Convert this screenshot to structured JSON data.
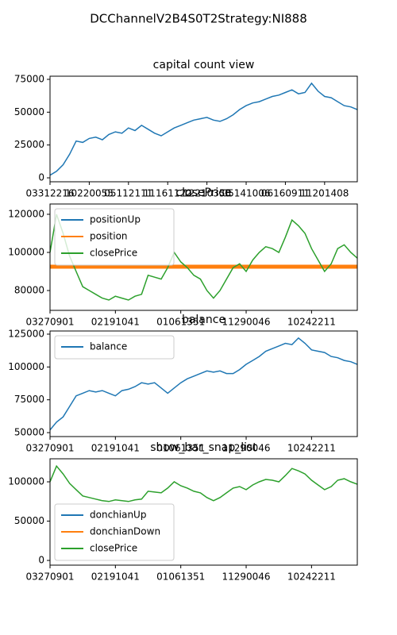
{
  "title": "DCChannelV2B4S0T2Strategy:NI888",
  "chart_data": [
    {
      "type": "line",
      "title": "capital count view",
      "x": [
        0,
        1,
        2,
        3,
        4,
        5,
        6,
        7,
        8,
        9,
        10,
        11,
        12,
        13,
        14,
        15,
        16,
        17,
        18,
        19,
        20,
        21,
        22,
        23,
        24,
        25,
        26,
        27,
        28,
        29,
        30,
        31,
        32,
        33,
        34,
        35,
        36,
        37,
        38,
        39,
        40,
        41,
        42,
        43,
        44,
        45,
        46,
        47
      ],
      "series": [
        {
          "name": "capital",
          "color": "#1f77b4",
          "values": [
            2000,
            5000,
            10000,
            18000,
            28000,
            27000,
            30000,
            31000,
            29000,
            33000,
            35000,
            34000,
            38000,
            36000,
            40000,
            37000,
            34000,
            32000,
            35000,
            38000,
            40000,
            42000,
            44000,
            45000,
            46000,
            44000,
            43000,
            45000,
            48000,
            52000,
            55000,
            57000,
            58000,
            60000,
            62000,
            63000,
            65000,
            67000,
            64000,
            65000,
            72000,
            66000,
            62000,
            61000,
            58000,
            55000,
            54000,
            52000
          ]
        }
      ],
      "xlim": [
        0,
        47
      ],
      "ylim": [
        -3000,
        77400
      ],
      "xticks": [
        {
          "value": 0,
          "label": "03312216"
        },
        {
          "value": 6,
          "label": "10220055"
        },
        {
          "value": 12,
          "label": "05112111"
        },
        {
          "value": 18,
          "label": "11161122"
        },
        {
          "value": 24,
          "label": "12210355"
        },
        {
          "value": 30,
          "label": "05141006"
        },
        {
          "value": 36,
          "label": "06160911"
        },
        {
          "value": 42,
          "label": "11201408"
        }
      ],
      "yticks": [
        0,
        25000,
        50000,
        75000
      ]
    },
    {
      "type": "line",
      "title": "closePrice",
      "x": [
        0,
        1,
        2,
        3,
        4,
        5,
        6,
        7,
        8,
        9,
        10,
        11,
        12,
        13,
        14,
        15,
        16,
        17,
        18,
        19,
        20,
        21,
        22,
        23,
        24,
        25,
        26,
        27,
        28,
        29,
        30,
        31,
        32,
        33,
        34,
        35,
        36,
        37,
        38,
        39,
        40,
        41,
        42,
        43,
        44,
        45,
        46,
        47
      ],
      "series": [
        {
          "name": "positionUp",
          "color": "#1f77b4",
          "values": [
            null,
            null,
            null,
            null,
            null,
            null,
            null,
            null,
            null,
            null,
            null,
            null,
            null,
            null,
            null,
            null,
            null,
            null,
            null,
            null,
            null,
            null,
            null,
            null,
            null,
            null,
            null,
            null,
            null,
            null,
            null,
            null,
            null,
            null,
            null,
            null,
            null,
            null,
            null,
            null,
            null,
            null,
            null,
            null,
            null,
            null,
            null,
            null
          ]
        },
        {
          "name": "position",
          "color": "#ff7f0e",
          "linewidth": 5,
          "values": [
            92500,
            92500,
            92500,
            92500,
            92500,
            92500,
            92500,
            92500,
            92500,
            92500,
            92500,
            92500,
            92500,
            92500,
            92500,
            92500,
            92500,
            92500,
            92500,
            92500,
            92500,
            92500,
            92500,
            92500,
            92500,
            92500,
            92500,
            92500,
            92500,
            92500,
            92500,
            92500,
            92500,
            92500,
            92500,
            92500,
            92500,
            92500,
            92500,
            92500,
            92500,
            92500,
            92500,
            92500,
            92500,
            92500,
            92500,
            92500
          ]
        },
        {
          "name": "closePrice",
          "color": "#2ca02c",
          "values": [
            100000,
            120000,
            110000,
            98000,
            90000,
            82000,
            80000,
            78000,
            76000,
            75000,
            77000,
            76000,
            75000,
            77000,
            78000,
            88000,
            87000,
            86000,
            92000,
            100000,
            95000,
            92000,
            88000,
            86000,
            80000,
            76000,
            80000,
            86000,
            92000,
            94000,
            90000,
            96000,
            100000,
            103000,
            102000,
            100000,
            108000,
            117000,
            114000,
            110000,
            102000,
            96000,
            90000,
            94000,
            102000,
            104000,
            100000,
            97000
          ]
        }
      ],
      "xlim": [
        0,
        47
      ],
      "ylim": [
        69600,
        125400
      ],
      "xticks": [
        {
          "value": 0,
          "label": "03270901"
        },
        {
          "value": 10,
          "label": "02191041"
        },
        {
          "value": 20,
          "label": "01061351"
        },
        {
          "value": 30,
          "label": "11290046"
        },
        {
          "value": 40,
          "label": "10242211"
        }
      ],
      "yticks": [
        80000,
        100000,
        120000
      ],
      "legend": "upper left"
    },
    {
      "type": "line",
      "title": "balance",
      "x": [
        0,
        1,
        2,
        3,
        4,
        5,
        6,
        7,
        8,
        9,
        10,
        11,
        12,
        13,
        14,
        15,
        16,
        17,
        18,
        19,
        20,
        21,
        22,
        23,
        24,
        25,
        26,
        27,
        28,
        29,
        30,
        31,
        32,
        33,
        34,
        35,
        36,
        37,
        38,
        39,
        40,
        41,
        42,
        43,
        44,
        45,
        46,
        47
      ],
      "series": [
        {
          "name": "balance",
          "color": "#1f77b4",
          "values": [
            52000,
            58000,
            62000,
            70000,
            78000,
            80000,
            82000,
            81000,
            82000,
            80000,
            78000,
            82000,
            83000,
            85000,
            88000,
            87000,
            88000,
            84000,
            80000,
            84000,
            88000,
            91000,
            93000,
            95000,
            97000,
            96000,
            97000,
            95000,
            95000,
            98000,
            102000,
            105000,
            108000,
            112000,
            114000,
            116000,
            118000,
            117000,
            122000,
            118000,
            113000,
            112000,
            111000,
            108000,
            107000,
            105000,
            104000,
            102000
          ]
        }
      ],
      "xlim": [
        0,
        47
      ],
      "ylim": [
        47000,
        127400
      ],
      "xticks": [
        {
          "value": 0,
          "label": "03270901"
        },
        {
          "value": 10,
          "label": "02191041"
        },
        {
          "value": 20,
          "label": "01061351"
        },
        {
          "value": 30,
          "label": "11290046"
        },
        {
          "value": 40,
          "label": "10242211"
        }
      ],
      "yticks": [
        50000,
        75000,
        100000,
        125000
      ],
      "legend": "upper left"
    },
    {
      "type": "line",
      "title": "show_bar_snap_list",
      "x": [
        0,
        1,
        2,
        3,
        4,
        5,
        6,
        7,
        8,
        9,
        10,
        11,
        12,
        13,
        14,
        15,
        16,
        17,
        18,
        19,
        20,
        21,
        22,
        23,
        24,
        25,
        26,
        27,
        28,
        29,
        30,
        31,
        32,
        33,
        34,
        35,
        36,
        37,
        38,
        39,
        40,
        41,
        42,
        43,
        44,
        45,
        46,
        47
      ],
      "series": [
        {
          "name": "donchianUp",
          "color": "#1f77b4",
          "values": [
            null,
            null,
            null,
            null,
            null,
            null,
            null,
            null,
            null,
            null,
            null,
            null,
            null,
            null,
            null,
            null,
            null,
            null,
            null,
            null,
            null,
            null,
            null,
            null,
            null,
            null,
            null,
            null,
            null,
            null,
            null,
            null,
            null,
            null,
            null,
            null,
            null,
            null,
            null,
            null,
            null,
            null,
            null,
            null,
            null,
            null,
            null,
            null
          ]
        },
        {
          "name": "donchianDown",
          "color": "#ff7f0e",
          "values": [
            null,
            null,
            null,
            null,
            null,
            null,
            null,
            null,
            null,
            null,
            null,
            null,
            null,
            null,
            null,
            null,
            null,
            null,
            null,
            null,
            null,
            null,
            null,
            null,
            null,
            null,
            null,
            null,
            null,
            null,
            null,
            null,
            null,
            null,
            null,
            null,
            null,
            null,
            null,
            null,
            null,
            null,
            null,
            null,
            null,
            null,
            null,
            null
          ]
        },
        {
          "name": "closePrice",
          "color": "#2ca02c",
          "values": [
            100000,
            120000,
            110000,
            98000,
            90000,
            82000,
            80000,
            78000,
            76000,
            75000,
            77000,
            76000,
            75000,
            77000,
            78000,
            88000,
            87000,
            86000,
            92000,
            100000,
            95000,
            92000,
            88000,
            86000,
            80000,
            76000,
            80000,
            86000,
            92000,
            94000,
            90000,
            96000,
            100000,
            103000,
            102000,
            100000,
            108000,
            117000,
            114000,
            110000,
            102000,
            96000,
            90000,
            94000,
            102000,
            104000,
            100000,
            97000
          ]
        }
      ],
      "xlim": [
        0,
        47
      ],
      "ylim": [
        -6000,
        129300
      ],
      "xticks": [
        {
          "value": 0,
          "label": "03270901"
        },
        {
          "value": 10,
          "label": "02191041"
        },
        {
          "value": 20,
          "label": "01061351"
        },
        {
          "value": 30,
          "label": "11290046"
        },
        {
          "value": 40,
          "label": "10242211"
        }
      ],
      "yticks": [
        0,
        50000,
        100000
      ],
      "legend": "lower left"
    }
  ]
}
